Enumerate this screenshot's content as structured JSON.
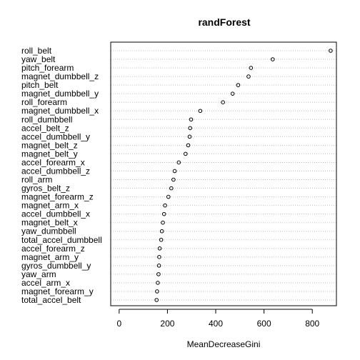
{
  "chart_data": {
    "type": "scatter",
    "title": "randForest",
    "xlabel": "MeanDecreaseGini",
    "ylabel": "",
    "xlim": [
      -35,
      900
    ],
    "xticks": [
      0,
      200,
      400,
      600,
      800
    ],
    "grid": "dotted horizontal lines per variable",
    "variables": [
      {
        "name": "roll_belt",
        "value": 876
      },
      {
        "name": "yaw_belt",
        "value": 636
      },
      {
        "name": "pitch_forearm",
        "value": 546
      },
      {
        "name": "magnet_dumbbell_z",
        "value": 536
      },
      {
        "name": "pitch_belt",
        "value": 493
      },
      {
        "name": "magnet_dumbbell_y",
        "value": 470
      },
      {
        "name": "roll_forearm",
        "value": 430
      },
      {
        "name": "magnet_dumbbell_x",
        "value": 336
      },
      {
        "name": "roll_dumbbell",
        "value": 298
      },
      {
        "name": "accel_belt_z",
        "value": 294
      },
      {
        "name": "accel_dumbbell_y",
        "value": 292
      },
      {
        "name": "magnet_belt_z",
        "value": 286
      },
      {
        "name": "magnet_belt_y",
        "value": 275
      },
      {
        "name": "accel_forearm_x",
        "value": 247
      },
      {
        "name": "accel_dumbbell_z",
        "value": 230
      },
      {
        "name": "roll_arm",
        "value": 225
      },
      {
        "name": "gyros_belt_z",
        "value": 216
      },
      {
        "name": "magnet_forearm_z",
        "value": 204
      },
      {
        "name": "magnet_arm_x",
        "value": 190
      },
      {
        "name": "accel_dumbbell_x",
        "value": 186
      },
      {
        "name": "magnet_belt_x",
        "value": 181
      },
      {
        "name": "yaw_dumbbell",
        "value": 177
      },
      {
        "name": "total_accel_dumbbell",
        "value": 174
      },
      {
        "name": "accel_forearm_z",
        "value": 168
      },
      {
        "name": "magnet_arm_y",
        "value": 166
      },
      {
        "name": "gyros_dumbbell_y",
        "value": 165
      },
      {
        "name": "yaw_arm",
        "value": 163
      },
      {
        "name": "accel_arm_x",
        "value": 160
      },
      {
        "name": "magnet_forearm_y",
        "value": 157
      },
      {
        "name": "total_accel_belt",
        "value": 155
      }
    ]
  }
}
